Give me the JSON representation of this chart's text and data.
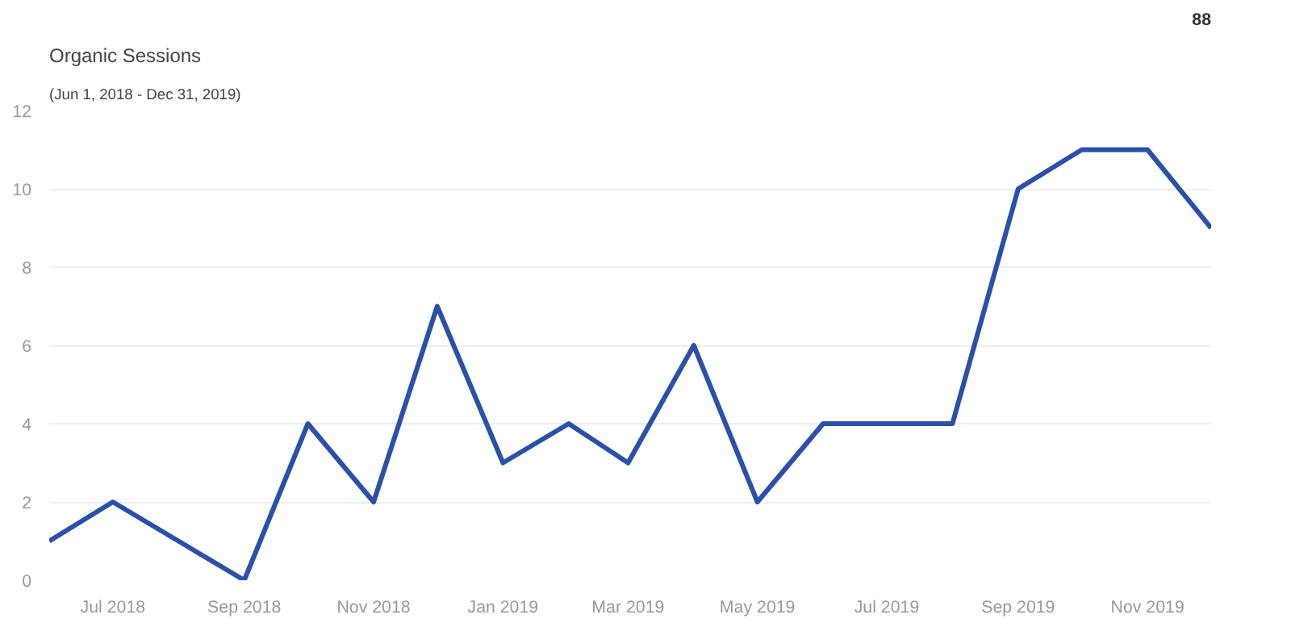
{
  "chart_data": {
    "type": "line",
    "title": "Organic Sessions",
    "subtitle": "(Jun 1, 2018 - Dec 31, 2019)",
    "annotations": [
      "88"
    ],
    "x": [
      "2018-06",
      "2018-07",
      "2018-08",
      "2018-09",
      "2018-10",
      "2018-11",
      "2018-12",
      "2019-01",
      "2019-02",
      "2019-03",
      "2019-04",
      "2019-05",
      "2019-06",
      "2019-07",
      "2019-08",
      "2019-09",
      "2019-10",
      "2019-11",
      "2019-12"
    ],
    "series": [
      {
        "color": "#2b50aa",
        "values": [
          1,
          2,
          1,
          0,
          4,
          2,
          7,
          3,
          4,
          3,
          6,
          2,
          4,
          4,
          4,
          10,
          11,
          11,
          9
        ]
      }
    ],
    "xlim": [
      "2018-06",
      "2019-12"
    ],
    "xticks": [
      {
        "value": "2018-07",
        "label": "Jul 2018"
      },
      {
        "value": "2018-09",
        "label": "Sep 2018"
      },
      {
        "value": "2018-11",
        "label": "Nov 2018"
      },
      {
        "value": "2019-01",
        "label": "Jan 2019"
      },
      {
        "value": "2019-03",
        "label": "Mar 2019"
      },
      {
        "value": "2019-05",
        "label": "May 2019"
      },
      {
        "value": "2019-07",
        "label": "Jul 2019"
      },
      {
        "value": "2019-09",
        "label": "Sep 2019"
      },
      {
        "value": "2019-11",
        "label": "Nov 2019"
      }
    ],
    "ylim": [
      0,
      12
    ],
    "yticks": [
      0,
      2,
      4,
      6,
      8,
      10,
      12
    ],
    "grid": "y",
    "marker": "none",
    "line_style": "solid"
  }
}
